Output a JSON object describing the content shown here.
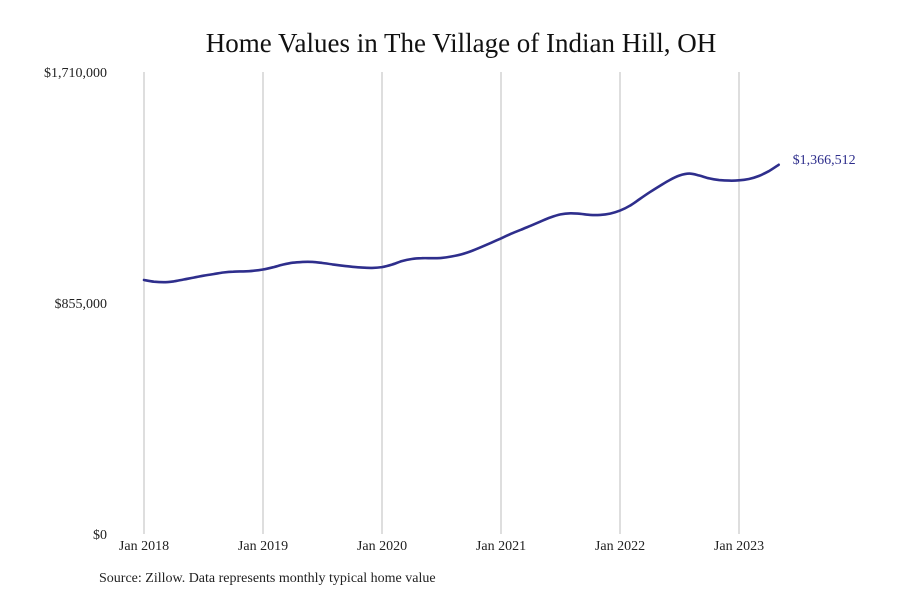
{
  "chart_data": {
    "type": "line",
    "title": "Home Values in The Village of Indian Hill, OH",
    "xlabel": "",
    "ylabel": "",
    "ylim": [
      0,
      1710000
    ],
    "yticks": [
      "$0",
      "$855,000",
      "$1,710,000"
    ],
    "xticks": [
      "Jan 2018",
      "Jan 2019",
      "Jan 2020",
      "Jan 2021",
      "Jan 2022",
      "Jan 2023"
    ],
    "grid": "vertical",
    "legend": "none",
    "line_color": "#2e2e8c",
    "end_label": "$1,366,512",
    "series": [
      {
        "x": [
          "2018-01",
          "2018-02",
          "2018-03",
          "2018-04",
          "2018-05",
          "2018-06",
          "2018-07",
          "2018-08",
          "2018-09",
          "2018-10",
          "2018-11",
          "2018-12",
          "2019-01",
          "2019-02",
          "2019-03",
          "2019-04",
          "2019-05",
          "2019-06",
          "2019-07",
          "2019-08",
          "2019-09",
          "2019-10",
          "2019-11",
          "2019-12",
          "2020-01",
          "2020-02",
          "2020-03",
          "2020-04",
          "2020-05",
          "2020-06",
          "2020-07",
          "2020-08",
          "2020-09",
          "2020-10",
          "2020-11",
          "2020-12",
          "2021-01",
          "2021-02",
          "2021-03",
          "2021-04",
          "2021-05",
          "2021-06",
          "2021-07",
          "2021-08",
          "2021-09",
          "2021-10",
          "2021-11",
          "2021-12",
          "2022-01",
          "2022-02",
          "2022-03",
          "2022-04",
          "2022-05",
          "2022-06",
          "2022-07",
          "2022-08",
          "2022-09",
          "2022-10",
          "2022-11",
          "2022-12",
          "2023-01",
          "2023-02",
          "2023-03",
          "2023-04",
          "2023-05"
        ],
        "values": [
          940000,
          934000,
          932000,
          935000,
          942000,
          949000,
          956000,
          962000,
          968000,
          971000,
          972000,
          974000,
          979000,
          987000,
          997000,
          1004000,
          1007000,
          1007000,
          1003000,
          998000,
          993000,
          989000,
          986000,
          985000,
          988000,
          997000,
          1010000,
          1018000,
          1021000,
          1021000,
          1022000,
          1027000,
          1035000,
          1047000,
          1062000,
          1078000,
          1094000,
          1111000,
          1126000,
          1141000,
          1157000,
          1172000,
          1183000,
          1187000,
          1185000,
          1181000,
          1181000,
          1186000,
          1197000,
          1215000,
          1240000,
          1265000,
          1288000,
          1310000,
          1327000,
          1334000,
          1327000,
          1316000,
          1310000,
          1308000,
          1309000,
          1314000,
          1325000,
          1343000,
          1366512
        ]
      }
    ]
  },
  "footer": {
    "source": "Source: Zillow. Data represents monthly typical home value"
  }
}
